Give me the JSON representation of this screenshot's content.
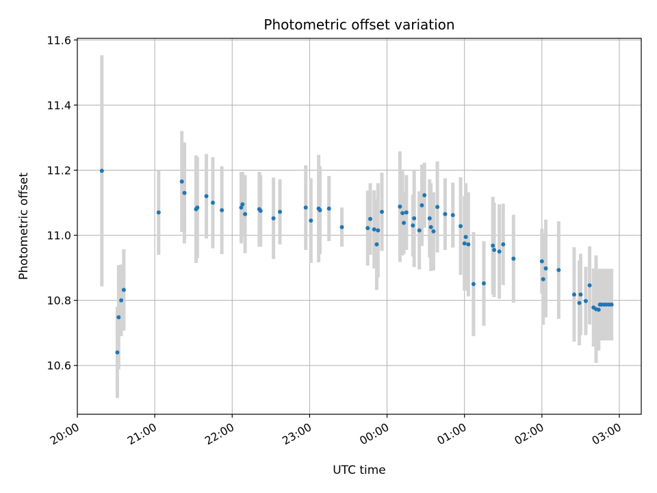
{
  "chart_data": {
    "type": "scatter",
    "title": "Photometric offset variation",
    "xlabel": "UTC time",
    "ylabel": "Photometric offset",
    "xlim": [
      "20:00",
      "03:17"
    ],
    "ylim": [
      10.45,
      11.605
    ],
    "grid": true,
    "x_ticks": [
      "20:00",
      "21:00",
      "22:00",
      "23:00",
      "00:00",
      "01:00",
      "02:00",
      "03:00"
    ],
    "y_ticks": [
      "10.6",
      "10.8",
      "11.0",
      "11.2",
      "11.4",
      "11.6"
    ],
    "colors": {
      "point": "#1f77b4",
      "errorbar": "#d3d3d3",
      "grid": "#b0b0b0"
    },
    "series": [
      {
        "x": [
          "20:19",
          "20:31",
          "20:32",
          "20:34",
          "20:36",
          "21:03",
          "21:21",
          "21:23",
          "21:32",
          "21:33",
          "21:40",
          "21:45",
          "21:52",
          "22:07",
          "22:08",
          "22:10",
          "22:21",
          "22:22",
          "22:32",
          "22:37",
          "22:57",
          "23:01",
          "23:07",
          "23:08",
          "23:15",
          "23:25",
          "23:45",
          "23:47",
          "23:50",
          "23:52",
          "23:53",
          "23:56",
          "00:10",
          "00:12",
          "00:13",
          "00:15",
          "00:20",
          "00:21",
          "00:25",
          "00:27",
          "00:29",
          "00:33",
          "00:34",
          "00:36",
          "00:39",
          "00:45",
          "00:51",
          "00:57",
          "01:00",
          "01:01",
          "01:03",
          "01:07",
          "01:15",
          "01:22",
          "01:23",
          "01:27",
          "01:30",
          "01:38",
          "02:00",
          "02:01",
          "02:03",
          "02:13",
          "02:25",
          "02:29",
          "02:30",
          "02:34",
          "02:37",
          "02:40",
          "02:42",
          "02:44",
          "02:45",
          "02:46",
          "02:48",
          "02:50",
          "02:52",
          "02:54"
        ],
        "y": [
          11.198,
          10.64,
          10.748,
          10.8,
          10.832,
          11.07,
          11.165,
          11.13,
          11.08,
          11.085,
          11.12,
          11.1,
          11.077,
          11.085,
          11.095,
          11.065,
          11.08,
          11.075,
          11.052,
          11.072,
          11.085,
          11.045,
          11.082,
          11.077,
          11.082,
          11.025,
          11.022,
          11.05,
          11.018,
          10.972,
          11.015,
          11.072,
          11.088,
          11.068,
          11.038,
          11.07,
          11.03,
          11.052,
          11.015,
          11.092,
          11.123,
          11.052,
          11.025,
          11.012,
          11.087,
          11.065,
          11.062,
          11.028,
          10.975,
          10.995,
          10.972,
          10.85,
          10.852,
          10.968,
          10.955,
          10.95,
          10.972,
          10.928,
          10.92,
          10.865,
          10.898,
          10.893,
          10.818,
          10.792,
          10.818,
          10.798,
          10.846,
          10.778,
          10.773,
          10.771,
          10.787,
          10.787,
          10.787,
          10.787,
          10.787,
          10.787
        ],
        "err": [
          0.355,
          0.14,
          0.16,
          0.11,
          0.125,
          0.13,
          0.155,
          0.155,
          0.165,
          0.155,
          0.13,
          0.14,
          0.135,
          0.11,
          0.1,
          0.12,
          0.115,
          0.11,
          0.125,
          0.1,
          0.13,
          0.13,
          0.165,
          0.135,
          0.1,
          0.06,
          0.115,
          0.11,
          0.12,
          0.14,
          0.145,
          0.12,
          0.17,
          0.13,
          0.095,
          0.115,
          0.095,
          0.15,
          0.12,
          0.125,
          0.1,
          0.12,
          0.135,
          0.12,
          0.14,
          0.11,
          0.1,
          0.15,
          0.145,
          0.165,
          0.16,
          0.16,
          0.13,
          0.15,
          0.145,
          0.145,
          0.125,
          0.135,
          0.1,
          0.14,
          0.15,
          0.15,
          0.145,
          0.13,
          0.125,
          0.105,
          0.12,
          0.12,
          0.165,
          0.125,
          0.11,
          0.11,
          0.11,
          0.11,
          0.11,
          0.11
        ]
      }
    ]
  }
}
